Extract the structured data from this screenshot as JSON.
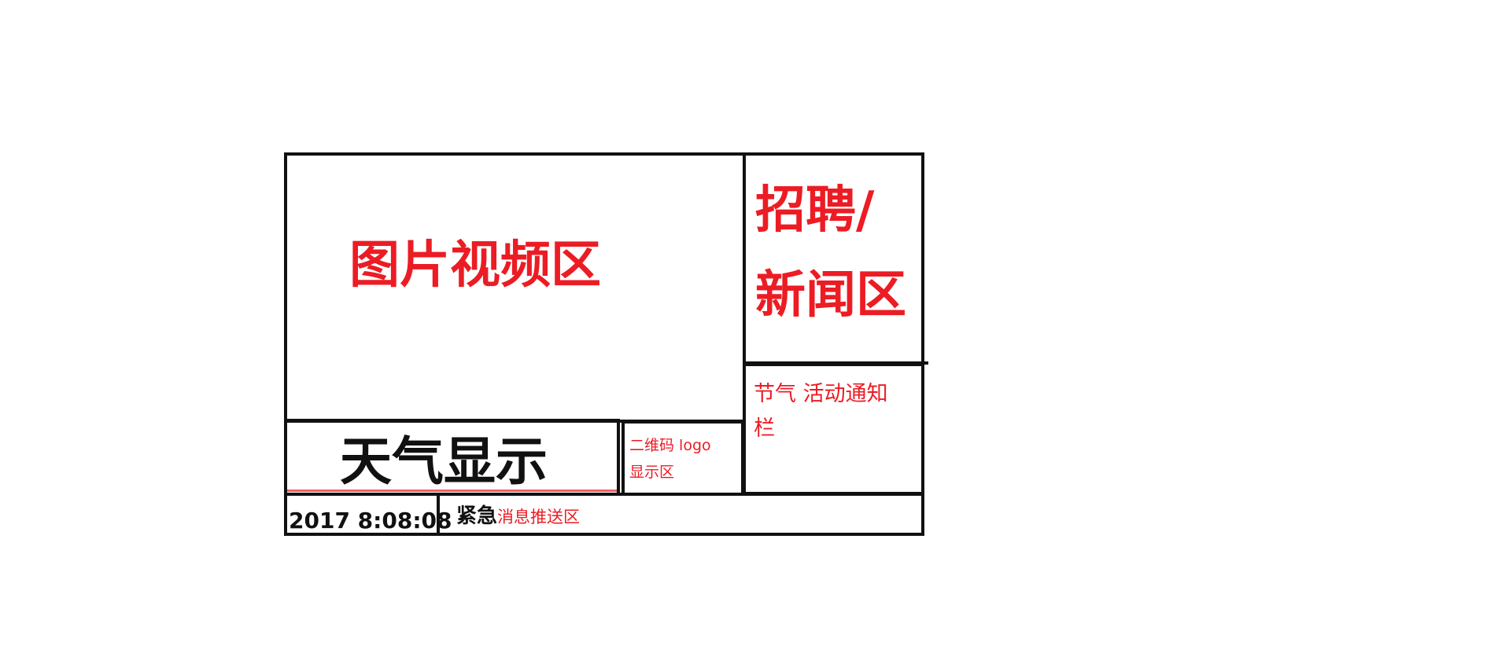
{
  "regions": {
    "media": {
      "label": "图片视频区"
    },
    "news": {
      "label_line1": "招聘/",
      "label_line2": "新闻区"
    },
    "notice": {
      "label_line1": "节气 活动通知",
      "label_line2": "栏"
    },
    "weather": {
      "label": "天气显示"
    },
    "qrcode": {
      "label_line1": "二维码 logo",
      "label_line2": "显示区"
    },
    "datetime": {
      "value": "2017 8:08:08"
    },
    "alert": {
      "label_prefix": "紧急",
      "label_suffix": "消息推送区"
    }
  },
  "colors": {
    "border": "#111111",
    "label_red": "#ec1c24",
    "label_black": "#111111",
    "background": "#ffffff"
  }
}
